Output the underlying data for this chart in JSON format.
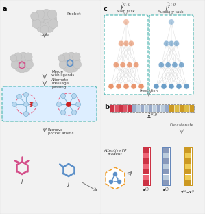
{
  "bg_color": "#e8e8e8",
  "panel_bg": "#ebebeb",
  "panel_a_label": "a",
  "panel_c_label": "c",
  "panel_b_label": "b",
  "pocket_label": "Pocket",
  "gcn_label": "GCN",
  "merge_label": "Merge\nwith ligands",
  "alt_msg_label": "Alternate\nmessage\npassing",
  "remove_label": "Remove\npocket atoms",
  "ligand_i_label": "i",
  "ligand_j_label": "j",
  "main_task_label": "Main task",
  "aux_task_label": "Auxiliary task",
  "prediction_label": "Prediction",
  "concatenate_label": "Concatenate",
  "attentive_label": "Attentive FP\nreadout",
  "teal_border": "#5bbcb8",
  "pink_color": "#d44f8a",
  "blue_mol_color": "#5b8fc8",
  "red_color": "#cc2222",
  "node_blue": "#a8c8e8",
  "orange_node": "#e8956d",
  "blue_node": "#6b9ec8",
  "arrow_color": "#777777",
  "protein_color": "#cccccc",
  "protein_edge": "#bbbbbb",
  "mp_box_fill": "#ddeeff",
  "graph_node_fill": "#b8d8f0",
  "graph_node_edge": "#88b8d8"
}
